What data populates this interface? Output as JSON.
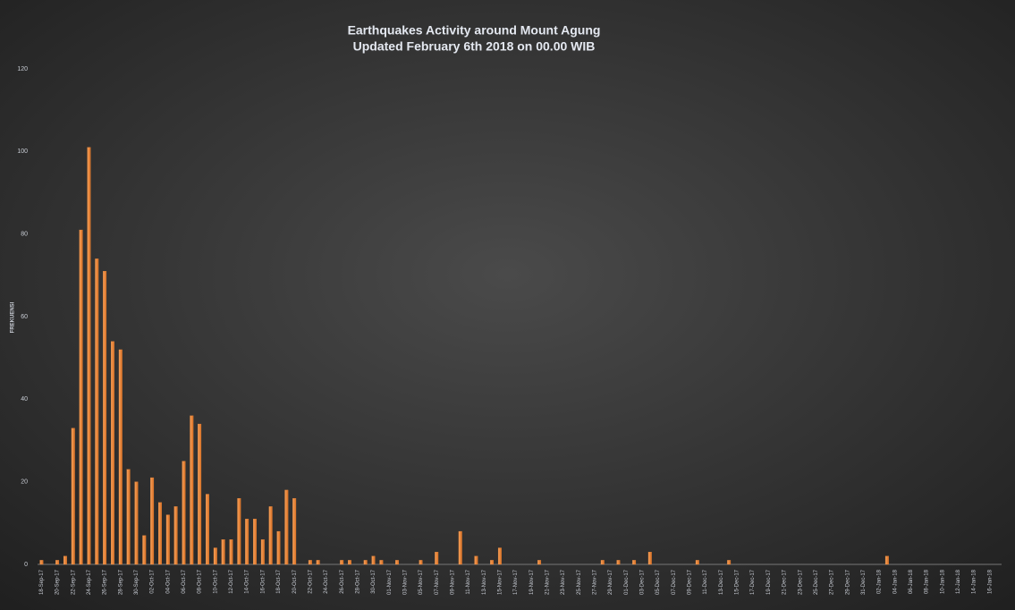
{
  "chart_data": {
    "type": "bar",
    "title": [
      "Earthquakes Activity around Mount Agung",
      "Updated February 6th 2018 on 00.00 WIB"
    ],
    "y_label": "FREKUENSI",
    "color": "#f08a3a",
    "categories": [
      "18-Sep-17",
      null,
      "20-Sep-17",
      null,
      "22-Sep-17",
      null,
      "24-Sep-17",
      null,
      "26-Sep-17",
      null,
      "28-Sep-17",
      null,
      "30-Sep-17",
      null,
      "02-Oct-17",
      null,
      "04-Oct-17",
      null,
      "06-Oct-17",
      null,
      "08-Oct-17",
      null,
      "10-Oct-17",
      null,
      "12-Oct-17",
      null,
      "14-Oct-17",
      null,
      "16-Oct-17",
      null,
      "18-Oct-17",
      null,
      "20-Oct-17",
      null,
      "22-Oct-17",
      null,
      "24-Oct-17",
      null,
      "26-Oct-17",
      null,
      "28-Oct-17",
      null,
      "30-Oct-17",
      null,
      "01-Nov-17",
      null,
      "03-Nov-17",
      null,
      "05-Nov-17",
      null,
      "07-Nov-17",
      null,
      "09-Nov-17",
      null,
      "11-Nov-17",
      null,
      "13-Nov-17",
      null,
      "15-Nov-17",
      null,
      "17-Nov-17",
      null,
      "19-Nov-17",
      null,
      "21-Nov-17",
      null,
      "23-Nov-17",
      null,
      "25-Nov-17",
      null,
      "27-Nov-17",
      null,
      "29-Nov-17",
      null,
      "01-Dec-17",
      null,
      "03-Dec-17",
      null,
      "05-Dec-17",
      null,
      "07-Dec-17",
      null,
      "09-Dec-17",
      null,
      "11-Dec-17",
      null,
      "13-Dec-17",
      null,
      "15-Dec-17",
      null,
      "17-Dec-17",
      null,
      "19-Dec-17",
      null,
      "21-Dec-17",
      null,
      "23-Dec-17",
      null,
      "25-Dec-17",
      null,
      "27-Dec-17",
      null,
      "29-Dec-17",
      null,
      "31-Dec-17",
      null,
      "02-Jan-18",
      null,
      "04-Jan-18",
      null,
      "06-Jan-18",
      null,
      "08-Jan-18",
      null,
      "10-Jan-18",
      null,
      "12-Jan-18",
      null,
      "14-Jan-18",
      null,
      "16-Jan-18",
      null
    ],
    "values": [
      1,
      0,
      1,
      2,
      33,
      81,
      101,
      74,
      71,
      54,
      52,
      23,
      20,
      7,
      21,
      15,
      12,
      14,
      25,
      36,
      34,
      17,
      4,
      6,
      6,
      16,
      11,
      11,
      6,
      14,
      8,
      18,
      16,
      0,
      1,
      1,
      0,
      0,
      1,
      1,
      0,
      1,
      2,
      1,
      0,
      1,
      0,
      0,
      1,
      0,
      3,
      0,
      0,
      8,
      0,
      2,
      0,
      1,
      4,
      0,
      0,
      0,
      0,
      1,
      0,
      0,
      0,
      0,
      0,
      0,
      0,
      1,
      0,
      1,
      0,
      1,
      0,
      3,
      0,
      0,
      0,
      0,
      0,
      1,
      0,
      0,
      0,
      1,
      0,
      0,
      0,
      0,
      0,
      0,
      0,
      0,
      0,
      0,
      0,
      0,
      0,
      0,
      0,
      0,
      0,
      0,
      0,
      2,
      0,
      0,
      0,
      0,
      0,
      0,
      0,
      0,
      0,
      0,
      0,
      0,
      0,
      0
    ],
    "ylim": [
      0,
      120
    ],
    "yticks": [
      0,
      20,
      40,
      60,
      80,
      100,
      120
    ],
    "grid": false
  }
}
